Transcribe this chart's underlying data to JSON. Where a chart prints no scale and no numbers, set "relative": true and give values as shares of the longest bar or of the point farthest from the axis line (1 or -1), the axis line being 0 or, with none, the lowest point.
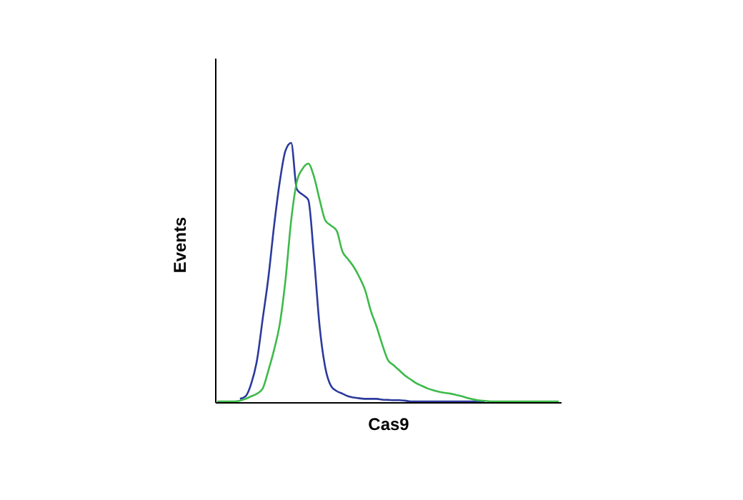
{
  "chart_data": {
    "type": "line",
    "relative": true,
    "xlabel": "Cas9",
    "ylabel": "Events",
    "grid": false,
    "legend": false,
    "marker": "none",
    "line_style": "solid",
    "categories": [
      null,
      null,
      null,
      null,
      null,
      null,
      null,
      null,
      null,
      null,
      null,
      null,
      null,
      null,
      null,
      null,
      null,
      null,
      null,
      null,
      null,
      null,
      null,
      null,
      null,
      null,
      null,
      null,
      null,
      null,
      null,
      null,
      null,
      null,
      null,
      null,
      null,
      null,
      null,
      null,
      null,
      null,
      null,
      null,
      null,
      null,
      null,
      null,
      null,
      null,
      null,
      null,
      null,
      null,
      null,
      null,
      null,
      null,
      null,
      null,
      null
    ],
    "series": [
      {
        "color": "#2b3a9c",
        "values": [
          null,
          null,
          null,
          null,
          0.01,
          0.02,
          0.07,
          0.16,
          0.32,
          0.48,
          0.68,
          0.85,
          0.97,
          1,
          0.82,
          0.8,
          0.78,
          0.56,
          0.29,
          0.13,
          0.06,
          0.04,
          0.03,
          0.02,
          0.015,
          0.012,
          0.01,
          0.01,
          0.01,
          0.007,
          0.006,
          0.005,
          0.005,
          0.003,
          0,
          0,
          0,
          0,
          0,
          0,
          0,
          0,
          0,
          0,
          0,
          0,
          0,
          0,
          null,
          null,
          null,
          null,
          null,
          null,
          null,
          null,
          null,
          null,
          null,
          null,
          null
        ]
      },
      {
        "color": "#3dba4a",
        "values": [
          0,
          0,
          0,
          0,
          0.003,
          0.01,
          0.02,
          0.03,
          0.05,
          0.12,
          0.2,
          0.3,
          0.47,
          0.7,
          0.85,
          0.9,
          0.92,
          0.87,
          0.78,
          0.7,
          0.68,
          0.66,
          0.58,
          0.55,
          0.52,
          0.48,
          0.43,
          0.35,
          0.29,
          0.22,
          0.16,
          0.14,
          0.12,
          0.1,
          0.085,
          0.07,
          0.06,
          0.05,
          0.043,
          0.037,
          0.033,
          0.03,
          0.025,
          0.02,
          0.013,
          0.008,
          0.004,
          0.002,
          0,
          0,
          0,
          0,
          0,
          0,
          0,
          0,
          0,
          0,
          0,
          0,
          0
        ]
      }
    ]
  }
}
